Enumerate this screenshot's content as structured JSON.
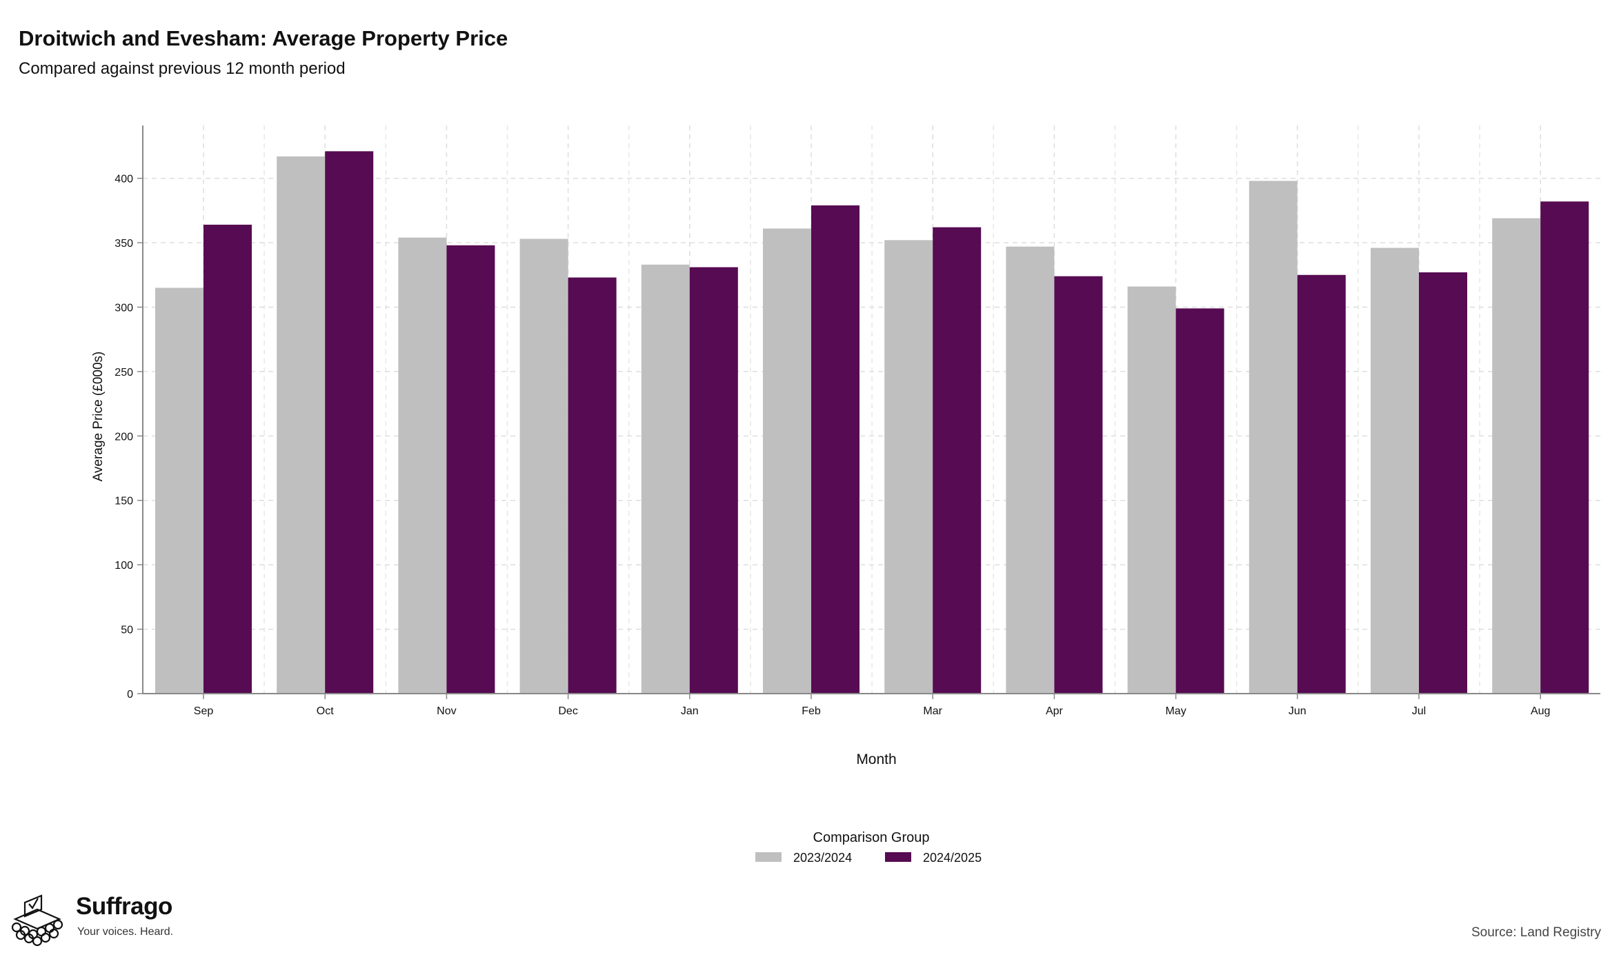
{
  "header": {
    "title": "Droitwich and Evesham: Average Property Price",
    "subtitle": "Compared against previous 12 month period"
  },
  "chart_data": {
    "type": "bar",
    "title": "Droitwich and Evesham: Average Property Price",
    "subtitle": "Compared against previous 12 month period",
    "xlabel": "Month",
    "ylabel": "Average Price (£000s)",
    "categories": [
      "Sep",
      "Oct",
      "Nov",
      "Dec",
      "Jan",
      "Feb",
      "Mar",
      "Apr",
      "May",
      "Jun",
      "Jul",
      "Aug"
    ],
    "series": [
      {
        "name": "2023/2024",
        "color": "#bfbfbf",
        "values": [
          315,
          417,
          354,
          353,
          333,
          361,
          352,
          347,
          316,
          398,
          346,
          369
        ]
      },
      {
        "name": "2024/2025",
        "color": "#560b52",
        "values": [
          364,
          421,
          348,
          323,
          331,
          379,
          362,
          324,
          299,
          325,
          327,
          382
        ]
      }
    ],
    "yticks": [
      0,
      50,
      100,
      150,
      200,
      250,
      300,
      350,
      400
    ],
    "ylim": [
      0,
      441
    ],
    "grid": true,
    "legend": {
      "title": "Comparison Group",
      "position": "bottom-center"
    }
  },
  "footer": {
    "brand_name": "Suffrago",
    "brand_tagline": "Your voices. Heard.",
    "source": "Source: Land Registry"
  }
}
